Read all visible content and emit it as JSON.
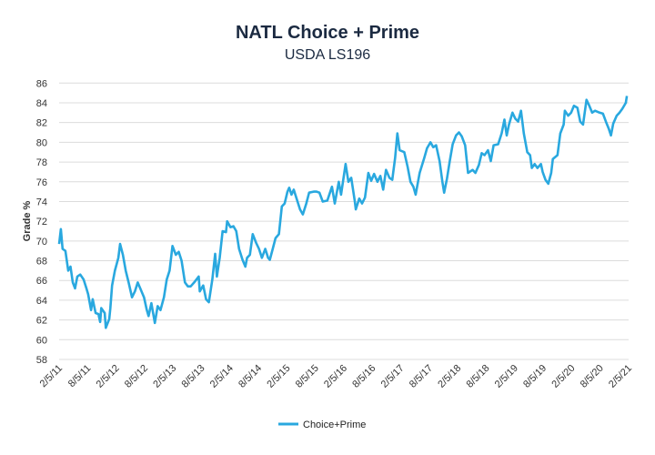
{
  "chart_data": {
    "type": "line",
    "title": "NATL Choice + Prime",
    "subtitle": "USDA LS196",
    "xlabel": "",
    "ylabel": "Grade %",
    "ylim": [
      58,
      86
    ],
    "yticks": [
      58,
      60,
      62,
      64,
      66,
      68,
      70,
      72,
      74,
      76,
      78,
      80,
      82,
      84,
      86
    ],
    "xlim_years_from_start": [
      0,
      10
    ],
    "xtick_labels": [
      "2/5/11",
      "8/5/11",
      "2/5/12",
      "8/5/12",
      "2/5/13",
      "8/5/13",
      "2/5/14",
      "8/5/14",
      "2/5/15",
      "8/5/15",
      "2/5/16",
      "8/5/16",
      "2/5/17",
      "8/5/17",
      "2/5/18",
      "8/5/18",
      "2/5/19",
      "8/5/19",
      "2/5/20",
      "8/5/20",
      "2/5/21"
    ],
    "grid": true,
    "legend_position": "bottom-center",
    "series": [
      {
        "name": "Choice+Prime",
        "color": "#29a8df",
        "x_unit": "years since 2/5/11",
        "points": [
          [
            0.0,
            69.7
          ],
          [
            0.03,
            71.2
          ],
          [
            0.06,
            69.2
          ],
          [
            0.11,
            69.0
          ],
          [
            0.16,
            67.0
          ],
          [
            0.2,
            67.4
          ],
          [
            0.24,
            65.8
          ],
          [
            0.28,
            65.2
          ],
          [
            0.32,
            66.4
          ],
          [
            0.37,
            66.6
          ],
          [
            0.43,
            66.1
          ],
          [
            0.48,
            65.2
          ],
          [
            0.51,
            64.6
          ],
          [
            0.56,
            63.0
          ],
          [
            0.59,
            64.1
          ],
          [
            0.64,
            62.7
          ],
          [
            0.69,
            62.6
          ],
          [
            0.72,
            61.8
          ],
          [
            0.74,
            63.2
          ],
          [
            0.8,
            62.7
          ],
          [
            0.82,
            61.2
          ],
          [
            0.88,
            62.1
          ],
          [
            0.9,
            63.2
          ],
          [
            0.93,
            65.5
          ],
          [
            0.98,
            67.0
          ],
          [
            1.04,
            68.3
          ],
          [
            1.07,
            69.7
          ],
          [
            1.12,
            68.6
          ],
          [
            1.17,
            67.0
          ],
          [
            1.22,
            65.8
          ],
          [
            1.28,
            64.3
          ],
          [
            1.33,
            64.9
          ],
          [
            1.38,
            65.8
          ],
          [
            1.44,
            65.0
          ],
          [
            1.49,
            64.3
          ],
          [
            1.54,
            63.0
          ],
          [
            1.57,
            62.4
          ],
          [
            1.62,
            63.7
          ],
          [
            1.68,
            61.7
          ],
          [
            1.73,
            63.4
          ],
          [
            1.78,
            63.0
          ],
          [
            1.84,
            64.3
          ],
          [
            1.89,
            66.1
          ],
          [
            1.94,
            67.0
          ],
          [
            1.99,
            69.5
          ],
          [
            2.05,
            68.6
          ],
          [
            2.1,
            68.9
          ],
          [
            2.15,
            68.0
          ],
          [
            2.21,
            65.8
          ],
          [
            2.26,
            65.4
          ],
          [
            2.31,
            65.4
          ],
          [
            2.37,
            65.8
          ],
          [
            2.45,
            66.4
          ],
          [
            2.47,
            64.9
          ],
          [
            2.53,
            65.5
          ],
          [
            2.58,
            64.1
          ],
          [
            2.63,
            63.8
          ],
          [
            2.69,
            66.1
          ],
          [
            2.74,
            68.7
          ],
          [
            2.77,
            66.4
          ],
          [
            2.82,
            68.3
          ],
          [
            2.87,
            71.0
          ],
          [
            2.93,
            70.9
          ],
          [
            2.95,
            72.0
          ],
          [
            3.01,
            71.4
          ],
          [
            3.06,
            71.5
          ],
          [
            3.11,
            71.0
          ],
          [
            3.16,
            69.2
          ],
          [
            3.22,
            68.1
          ],
          [
            3.27,
            67.4
          ],
          [
            3.3,
            68.3
          ],
          [
            3.35,
            68.6
          ],
          [
            3.4,
            70.7
          ],
          [
            3.46,
            69.8
          ],
          [
            3.51,
            69.2
          ],
          [
            3.56,
            68.3
          ],
          [
            3.62,
            69.2
          ],
          [
            3.67,
            68.3
          ],
          [
            3.7,
            68.1
          ],
          [
            3.75,
            69.2
          ],
          [
            3.8,
            70.3
          ],
          [
            3.86,
            70.7
          ],
          [
            3.91,
            73.5
          ],
          [
            3.96,
            73.8
          ],
          [
            4.01,
            75.0
          ],
          [
            4.04,
            75.4
          ],
          [
            4.08,
            74.7
          ],
          [
            4.12,
            75.2
          ],
          [
            4.18,
            74.1
          ],
          [
            4.23,
            73.2
          ],
          [
            4.28,
            72.7
          ],
          [
            4.34,
            73.8
          ],
          [
            4.39,
            74.9
          ],
          [
            4.47,
            75.0
          ],
          [
            4.52,
            75.0
          ],
          [
            4.57,
            74.9
          ],
          [
            4.63,
            74.0
          ],
          [
            4.71,
            74.1
          ],
          [
            4.79,
            75.5
          ],
          [
            4.84,
            73.8
          ],
          [
            4.91,
            76.0
          ],
          [
            4.95,
            74.7
          ],
          [
            5.03,
            77.8
          ],
          [
            5.08,
            76.0
          ],
          [
            5.13,
            76.4
          ],
          [
            5.19,
            74.1
          ],
          [
            5.21,
            73.2
          ],
          [
            5.27,
            74.3
          ],
          [
            5.32,
            73.8
          ],
          [
            5.37,
            74.4
          ],
          [
            5.43,
            76.9
          ],
          [
            5.48,
            76.1
          ],
          [
            5.53,
            76.8
          ],
          [
            5.59,
            76.0
          ],
          [
            5.64,
            76.6
          ],
          [
            5.69,
            75.2
          ],
          [
            5.74,
            77.2
          ],
          [
            5.8,
            76.4
          ],
          [
            5.85,
            76.2
          ],
          [
            5.9,
            78.4
          ],
          [
            5.94,
            80.9
          ],
          [
            5.98,
            79.2
          ],
          [
            6.06,
            79.0
          ],
          [
            6.12,
            77.5
          ],
          [
            6.17,
            76.0
          ],
          [
            6.22,
            75.5
          ],
          [
            6.26,
            74.7
          ],
          [
            6.33,
            76.9
          ],
          [
            6.41,
            78.4
          ],
          [
            6.46,
            79.4
          ],
          [
            6.52,
            80.0
          ],
          [
            6.57,
            79.5
          ],
          [
            6.62,
            79.7
          ],
          [
            6.68,
            78.1
          ],
          [
            6.73,
            76.0
          ],
          [
            6.76,
            74.9
          ],
          [
            6.81,
            76.3
          ],
          [
            6.86,
            78.1
          ],
          [
            6.91,
            79.8
          ],
          [
            6.97,
            80.7
          ],
          [
            7.02,
            81.0
          ],
          [
            7.07,
            80.6
          ],
          [
            7.13,
            79.7
          ],
          [
            7.18,
            76.9
          ],
          [
            7.26,
            77.2
          ],
          [
            7.31,
            76.9
          ],
          [
            7.37,
            77.7
          ],
          [
            7.42,
            78.9
          ],
          [
            7.47,
            78.7
          ],
          [
            7.53,
            79.2
          ],
          [
            7.58,
            78.1
          ],
          [
            7.63,
            79.7
          ],
          [
            7.71,
            79.8
          ],
          [
            7.77,
            80.9
          ],
          [
            7.82,
            82.3
          ],
          [
            7.86,
            80.7
          ],
          [
            7.9,
            81.8
          ],
          [
            7.96,
            83.0
          ],
          [
            8.01,
            82.4
          ],
          [
            8.06,
            82.1
          ],
          [
            8.11,
            83.2
          ],
          [
            8.16,
            80.9
          ],
          [
            8.22,
            79.0
          ],
          [
            8.27,
            78.7
          ],
          [
            8.3,
            77.4
          ],
          [
            8.35,
            77.8
          ],
          [
            8.4,
            77.4
          ],
          [
            8.46,
            77.8
          ],
          [
            8.49,
            77.0
          ],
          [
            8.54,
            76.2
          ],
          [
            8.59,
            75.8
          ],
          [
            8.64,
            76.9
          ],
          [
            8.67,
            78.3
          ],
          [
            8.75,
            78.7
          ],
          [
            8.8,
            80.9
          ],
          [
            8.86,
            81.8
          ],
          [
            8.88,
            83.2
          ],
          [
            8.94,
            82.7
          ],
          [
            8.99,
            83.0
          ],
          [
            9.04,
            83.7
          ],
          [
            9.1,
            83.5
          ],
          [
            9.15,
            82.1
          ],
          [
            9.2,
            81.8
          ],
          [
            9.26,
            84.3
          ],
          [
            9.31,
            83.7
          ],
          [
            9.36,
            83.0
          ],
          [
            9.41,
            83.2
          ],
          [
            9.49,
            83.0
          ],
          [
            9.55,
            82.9
          ],
          [
            9.6,
            82.1
          ],
          [
            9.65,
            81.4
          ],
          [
            9.69,
            80.7
          ],
          [
            9.73,
            81.9
          ],
          [
            9.79,
            82.7
          ],
          [
            9.84,
            83.0
          ],
          [
            9.89,
            83.4
          ],
          [
            9.95,
            84.0
          ],
          [
            9.97,
            84.7
          ]
        ]
      }
    ]
  }
}
